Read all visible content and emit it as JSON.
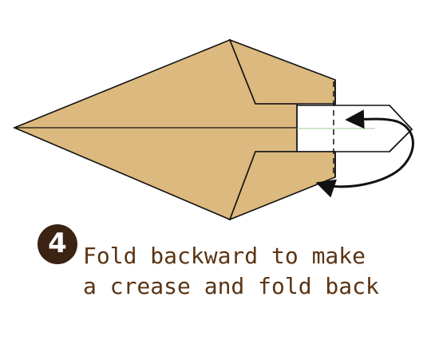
{
  "step": {
    "number": "4",
    "line1": "Fold backward to make",
    "line2": "a crease and fold back"
  },
  "colors": {
    "paper": "#dcb97f",
    "paper_back": "#ffffff",
    "outline": "#111111",
    "step_badge": "#3b2314",
    "text": "#5a3414"
  },
  "icons": {
    "fold_arrow": "curved-arrow-icon",
    "crease_line": "dashed-crease-line"
  }
}
